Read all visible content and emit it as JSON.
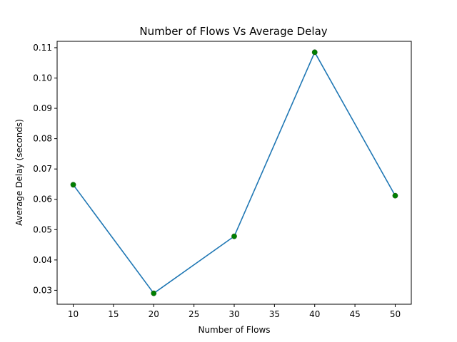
{
  "chart_data": {
    "type": "line",
    "title": "Number of Flows Vs Average Delay",
    "xlabel": "Number of Flows",
    "ylabel": "Average Delay (seconds)",
    "x": [
      10,
      20,
      30,
      40,
      50
    ],
    "series": [
      {
        "values": [
          0.0648,
          0.029,
          0.0478,
          0.1085,
          0.0612
        ],
        "line_color": "#1f77b4",
        "marker_color": "#008000"
      }
    ],
    "xlim": [
      8,
      52
    ],
    "ylim": [
      0.0254,
      0.1121
    ],
    "xticks": [
      10,
      15,
      20,
      25,
      30,
      35,
      40,
      45,
      50
    ],
    "xtick_labels": [
      "10",
      "15",
      "20",
      "25",
      "30",
      "35",
      "40",
      "45",
      "50"
    ],
    "yticks": [
      0.03,
      0.04,
      0.05,
      0.06,
      0.07,
      0.08,
      0.09,
      0.1,
      0.11
    ],
    "ytick_labels": [
      "0.03",
      "0.04",
      "0.05",
      "0.06",
      "0.07",
      "0.08",
      "0.09",
      "0.10",
      "0.11"
    ],
    "grid": false,
    "legend": false
  }
}
